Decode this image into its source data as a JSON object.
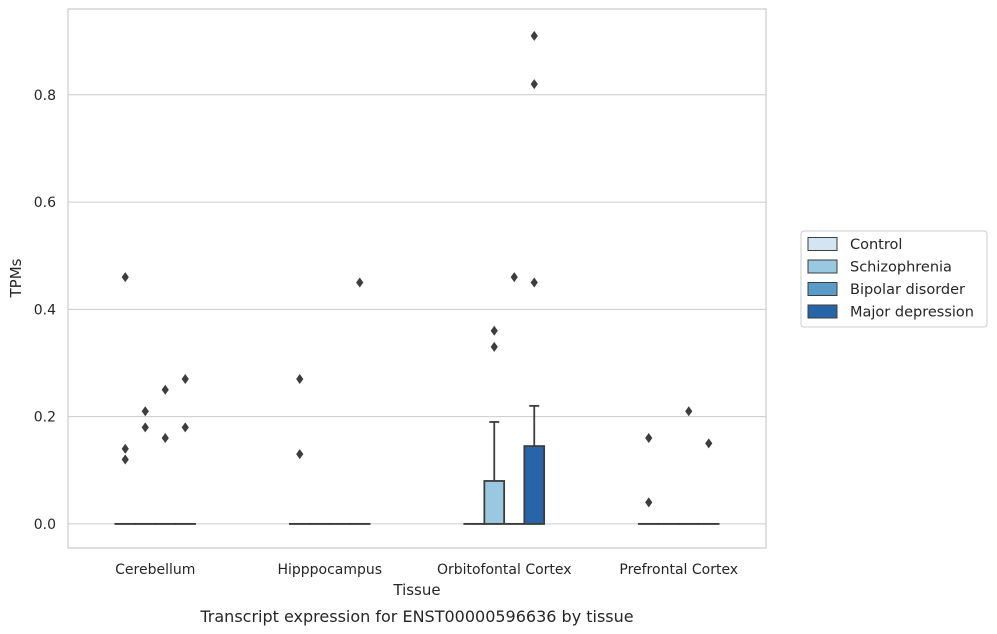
{
  "caption": "Transcript expression for ENST00000596636 by tissue",
  "colors": {
    "Control": "#d3e4f3",
    "Schizophrenia": "#9ac8e0",
    "Bipolar disorder": "#5a9bc9",
    "Major depression": "#2666a8",
    "grid": "#cccccc",
    "frame": "#cccccc",
    "box_edge": "#3d3d3d"
  },
  "chart_data": {
    "type": "box",
    "title": "",
    "xlabel": "Tissue",
    "ylabel": "TPMs",
    "categories": [
      "Cerebellum",
      "Hipppocampus",
      "Orbitofontal Cortex",
      "Prefrontal Cortex"
    ],
    "ylim": [
      -0.045,
      0.96
    ],
    "yticks": [
      0.0,
      0.2,
      0.4,
      0.6,
      0.8
    ],
    "ytick_labels": [
      "0.0",
      "0.2",
      "0.4",
      "0.6",
      "0.8"
    ],
    "grid": true,
    "legend_position": "right-center",
    "series": [
      {
        "name": "Control",
        "boxes": [
          {
            "q1": 0,
            "median": 0,
            "q3": 0,
            "whisker_low": 0,
            "whisker_high": 0,
            "outliers": [
              0.12,
              0.14,
              0.46
            ]
          },
          {
            "q1": 0,
            "median": 0,
            "q3": 0,
            "whisker_low": 0,
            "whisker_high": 0,
            "outliers": [
              0.13,
              0.27
            ]
          },
          {
            "q1": 0,
            "median": 0,
            "q3": 0,
            "whisker_low": 0,
            "whisker_high": 0,
            "outliers": []
          },
          {
            "q1": 0,
            "median": 0,
            "q3": 0,
            "whisker_low": 0,
            "whisker_high": 0,
            "outliers": [
              0.04,
              0.16
            ]
          }
        ]
      },
      {
        "name": "Schizophrenia",
        "boxes": [
          {
            "q1": 0,
            "median": 0,
            "q3": 0,
            "whisker_low": 0,
            "whisker_high": 0,
            "outliers": [
              0.18,
              0.21
            ]
          },
          {
            "q1": 0,
            "median": 0,
            "q3": 0,
            "whisker_low": 0,
            "whisker_high": 0,
            "outliers": []
          },
          {
            "q1": 0,
            "median": 0,
            "q3": 0.08,
            "whisker_low": 0,
            "whisker_high": 0.19,
            "outliers": [
              0.33,
              0.36
            ]
          },
          {
            "q1": 0,
            "median": 0,
            "q3": 0,
            "whisker_low": 0,
            "whisker_high": 0,
            "outliers": []
          }
        ]
      },
      {
        "name": "Bipolar disorder",
        "boxes": [
          {
            "q1": 0,
            "median": 0,
            "q3": 0,
            "whisker_low": 0,
            "whisker_high": 0,
            "outliers": [
              0.16,
              0.25
            ]
          },
          {
            "q1": 0,
            "median": 0,
            "q3": 0,
            "whisker_low": 0,
            "whisker_high": 0,
            "outliers": []
          },
          {
            "q1": 0,
            "median": 0,
            "q3": 0,
            "whisker_low": 0,
            "whisker_high": 0,
            "outliers": [
              0.46
            ]
          },
          {
            "q1": 0,
            "median": 0,
            "q3": 0,
            "whisker_low": 0,
            "whisker_high": 0,
            "outliers": [
              0.21
            ]
          }
        ]
      },
      {
        "name": "Major depression",
        "boxes": [
          {
            "q1": 0,
            "median": 0,
            "q3": 0,
            "whisker_low": 0,
            "whisker_high": 0,
            "outliers": [
              0.18,
              0.27
            ]
          },
          {
            "q1": 0,
            "median": 0,
            "q3": 0,
            "whisker_low": 0,
            "whisker_high": 0,
            "outliers": [
              0.45
            ]
          },
          {
            "q1": 0,
            "median": 0,
            "q3": 0.145,
            "whisker_low": 0,
            "whisker_high": 0.22,
            "outliers": [
              0.45,
              0.82,
              0.91
            ]
          },
          {
            "q1": 0,
            "median": 0,
            "q3": 0,
            "whisker_low": 0,
            "whisker_high": 0,
            "outliers": [
              0.15
            ]
          }
        ]
      }
    ]
  }
}
